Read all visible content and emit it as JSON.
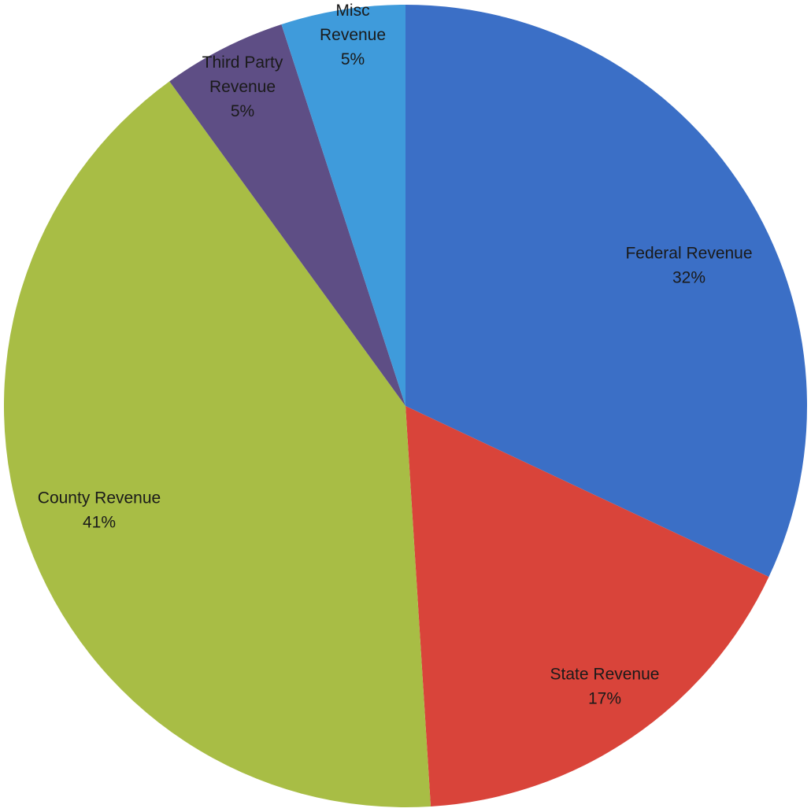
{
  "chart_data": {
    "type": "pie",
    "title": "",
    "start_angle_deg": 0,
    "direction": "clockwise",
    "slices": [
      {
        "name": "Federal Revenue",
        "lines": [
          "Federal Revenue"
        ],
        "value": 32,
        "label": "32%",
        "color": "#3B6FC6"
      },
      {
        "name": "State Revenue",
        "lines": [
          "State Revenue"
        ],
        "value": 17,
        "label": "17%",
        "color": "#D9443A"
      },
      {
        "name": "County Revenue",
        "lines": [
          "County Revenue"
        ],
        "value": 41,
        "label": "41%",
        "color": "#A8BD45"
      },
      {
        "name": "Third Party Revenue",
        "lines": [
          "Third Party",
          "Revenue"
        ],
        "value": 5,
        "label": "5%",
        "color": "#5E4E85"
      },
      {
        "name": "Misc Revenue",
        "lines": [
          "Misc",
          "Revenue"
        ],
        "value": 5,
        "label": "5%",
        "color": "#3F9BDB"
      }
    ]
  }
}
